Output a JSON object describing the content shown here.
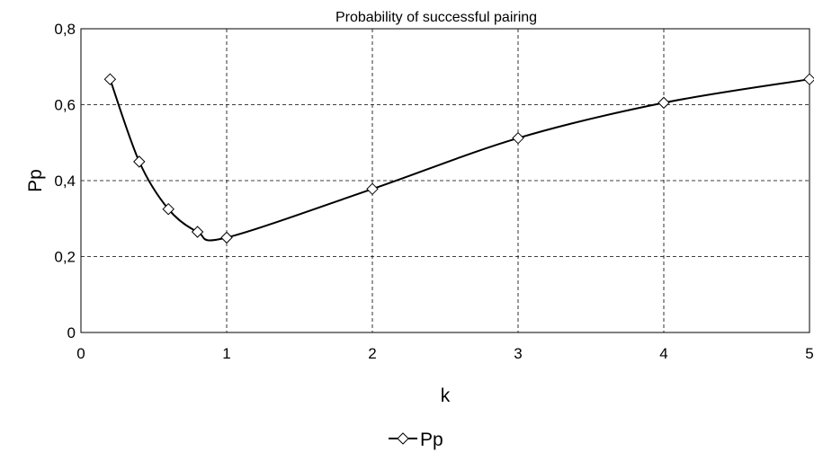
{
  "chart_data": {
    "type": "line",
    "title": "Probability of successful pairing",
    "xlabel": "k",
    "ylabel": "Pp",
    "xlim": [
      0,
      5
    ],
    "ylim": [
      0,
      0.8
    ],
    "x_ticks": [
      0,
      1,
      2,
      3,
      4,
      5
    ],
    "y_ticks": [
      0,
      0.2,
      0.4,
      0.6,
      0.8
    ],
    "x_tick_labels": [
      "0",
      "1",
      "2",
      "3",
      "4",
      "5"
    ],
    "y_tick_labels": [
      "0",
      "0,2",
      "0,4",
      "0,6",
      "0,8"
    ],
    "grid": "dashed",
    "legend": "bottom",
    "smooth": true,
    "series": [
      {
        "name": "Pp",
        "marker": "diamond",
        "color": "#000000",
        "x": [
          0.2,
          0.4,
          0.6,
          0.8,
          1,
          2,
          3,
          4,
          5
        ],
        "y": [
          0.667,
          0.45,
          0.325,
          0.265,
          0.25,
          0.378,
          0.512,
          0.605,
          0.667
        ]
      }
    ]
  }
}
